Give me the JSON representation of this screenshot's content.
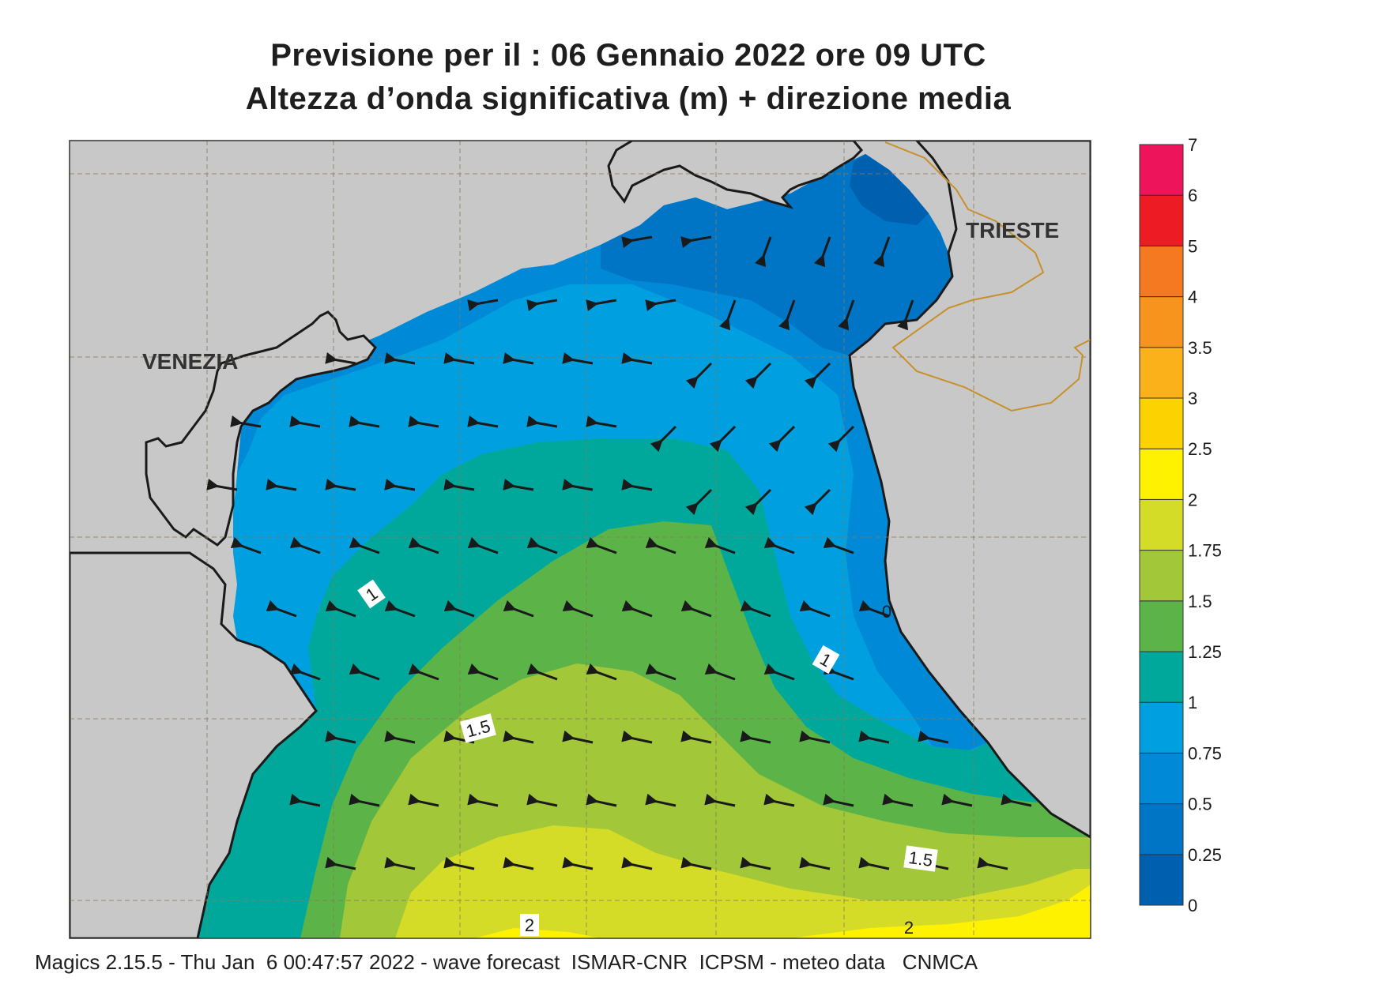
{
  "header": {
    "title_line1": "Previsione per il  :  06  Gennaio  2022   ore 09 UTC",
    "title_line2": "Altezza d’onda significativa (m) + direzione media"
  },
  "map": {
    "cities": [
      "VENEZIA",
      "TRIESTE"
    ],
    "contour_labels": [
      "1",
      "1.5",
      "2",
      "1",
      "1.5",
      "2",
      "0"
    ]
  },
  "legend": {
    "unit": "m",
    "ticks": [
      "0",
      "0.25",
      "0.5",
      "0.75",
      "1",
      "1.25",
      "1.5",
      "1.75",
      "2",
      "2.5",
      "3",
      "3.5",
      "4",
      "5",
      "6",
      "7"
    ],
    "colors": [
      "#0060b0",
      "#0075c5",
      "#0089d6",
      "#00a0e0",
      "#00a89c",
      "#5cb448",
      "#a2c83a",
      "#d4dc28",
      "#fff200",
      "#fcd200",
      "#fbb21a",
      "#f7941d",
      "#f47920",
      "#ed1c24",
      "#ed145b"
    ]
  },
  "footer": {
    "text": "Magics 2.15.5 - Thu Jan  6 00:47:57 2022 - wave forecast  ISMAR-CNR  ICPSM - meteo data   CNMCA"
  }
}
